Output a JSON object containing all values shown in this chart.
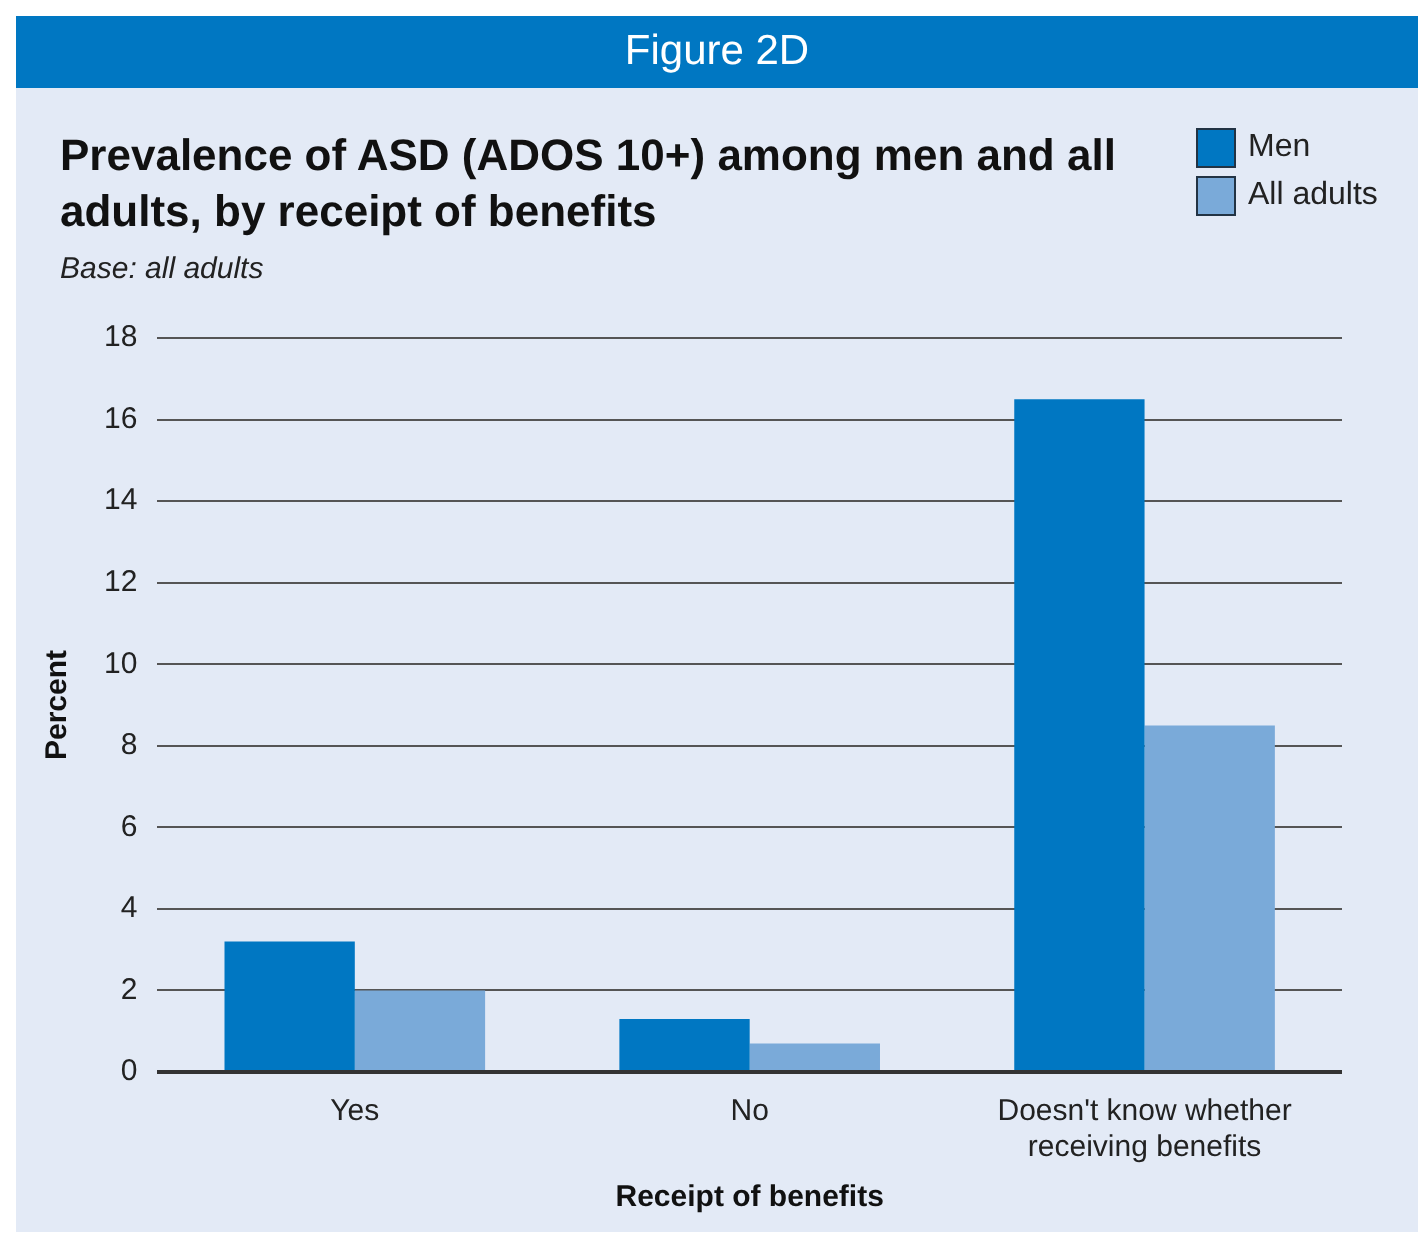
{
  "chart_data": {
    "type": "bar",
    "title": "Prevalence of ASD (ADOS 10+) among men and all adults, by receipt of benefits",
    "subtitle": "Base: all adults",
    "annotations": [
      "Figure 2D"
    ],
    "xlabel": "Receipt of benefits",
    "ylabel": "Percent",
    "categories": [
      "Yes",
      "No",
      "Doesn't know whether receiving benefits"
    ],
    "series": [
      {
        "name": "Men",
        "color": "#0077c2",
        "values": [
          3.2,
          1.3,
          16.5
        ]
      },
      {
        "name": "All adults",
        "color": "#7aaad9",
        "values": [
          2.0,
          0.7,
          8.5
        ]
      }
    ],
    "ylim": [
      0,
      18
    ],
    "yticks": [
      0,
      2,
      4,
      6,
      8,
      10,
      12,
      14,
      16,
      18
    ],
    "grid": "y",
    "legend": "top right"
  }
}
